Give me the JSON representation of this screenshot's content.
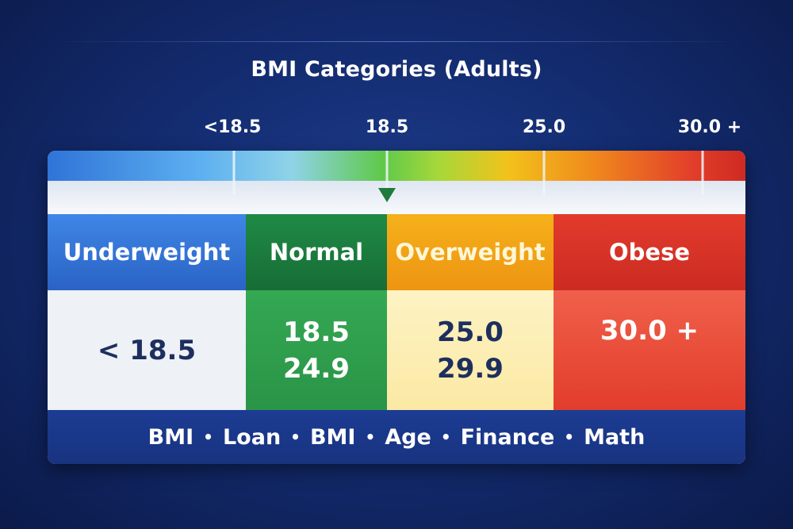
{
  "title": "BMI Categories (Adults)",
  "scale": {
    "ticks": [
      {
        "label": "<18.5"
      },
      {
        "label": "18.5"
      },
      {
        "label": "25.0"
      },
      {
        "label": "30.0 +"
      }
    ],
    "pointer_value": "18.5"
  },
  "categories": [
    {
      "name": "Underweight",
      "range_lines": [
        "< 18.5"
      ],
      "color": "#2f6fd6"
    },
    {
      "name": "Normal",
      "range_lines": [
        "18.5",
        "24.9"
      ],
      "color": "#1f8a46"
    },
    {
      "name": "Overweight",
      "range_lines": [
        "25.0",
        "29.9"
      ],
      "color": "#f2a317"
    },
    {
      "name": "Obese",
      "range_lines": [
        "30.0 +"
      ],
      "color": "#d9342a"
    }
  ],
  "footer": {
    "items": [
      "BMI",
      "Loan",
      "BMI",
      "Age",
      "Finance",
      "Math"
    ],
    "separator": "•"
  }
}
